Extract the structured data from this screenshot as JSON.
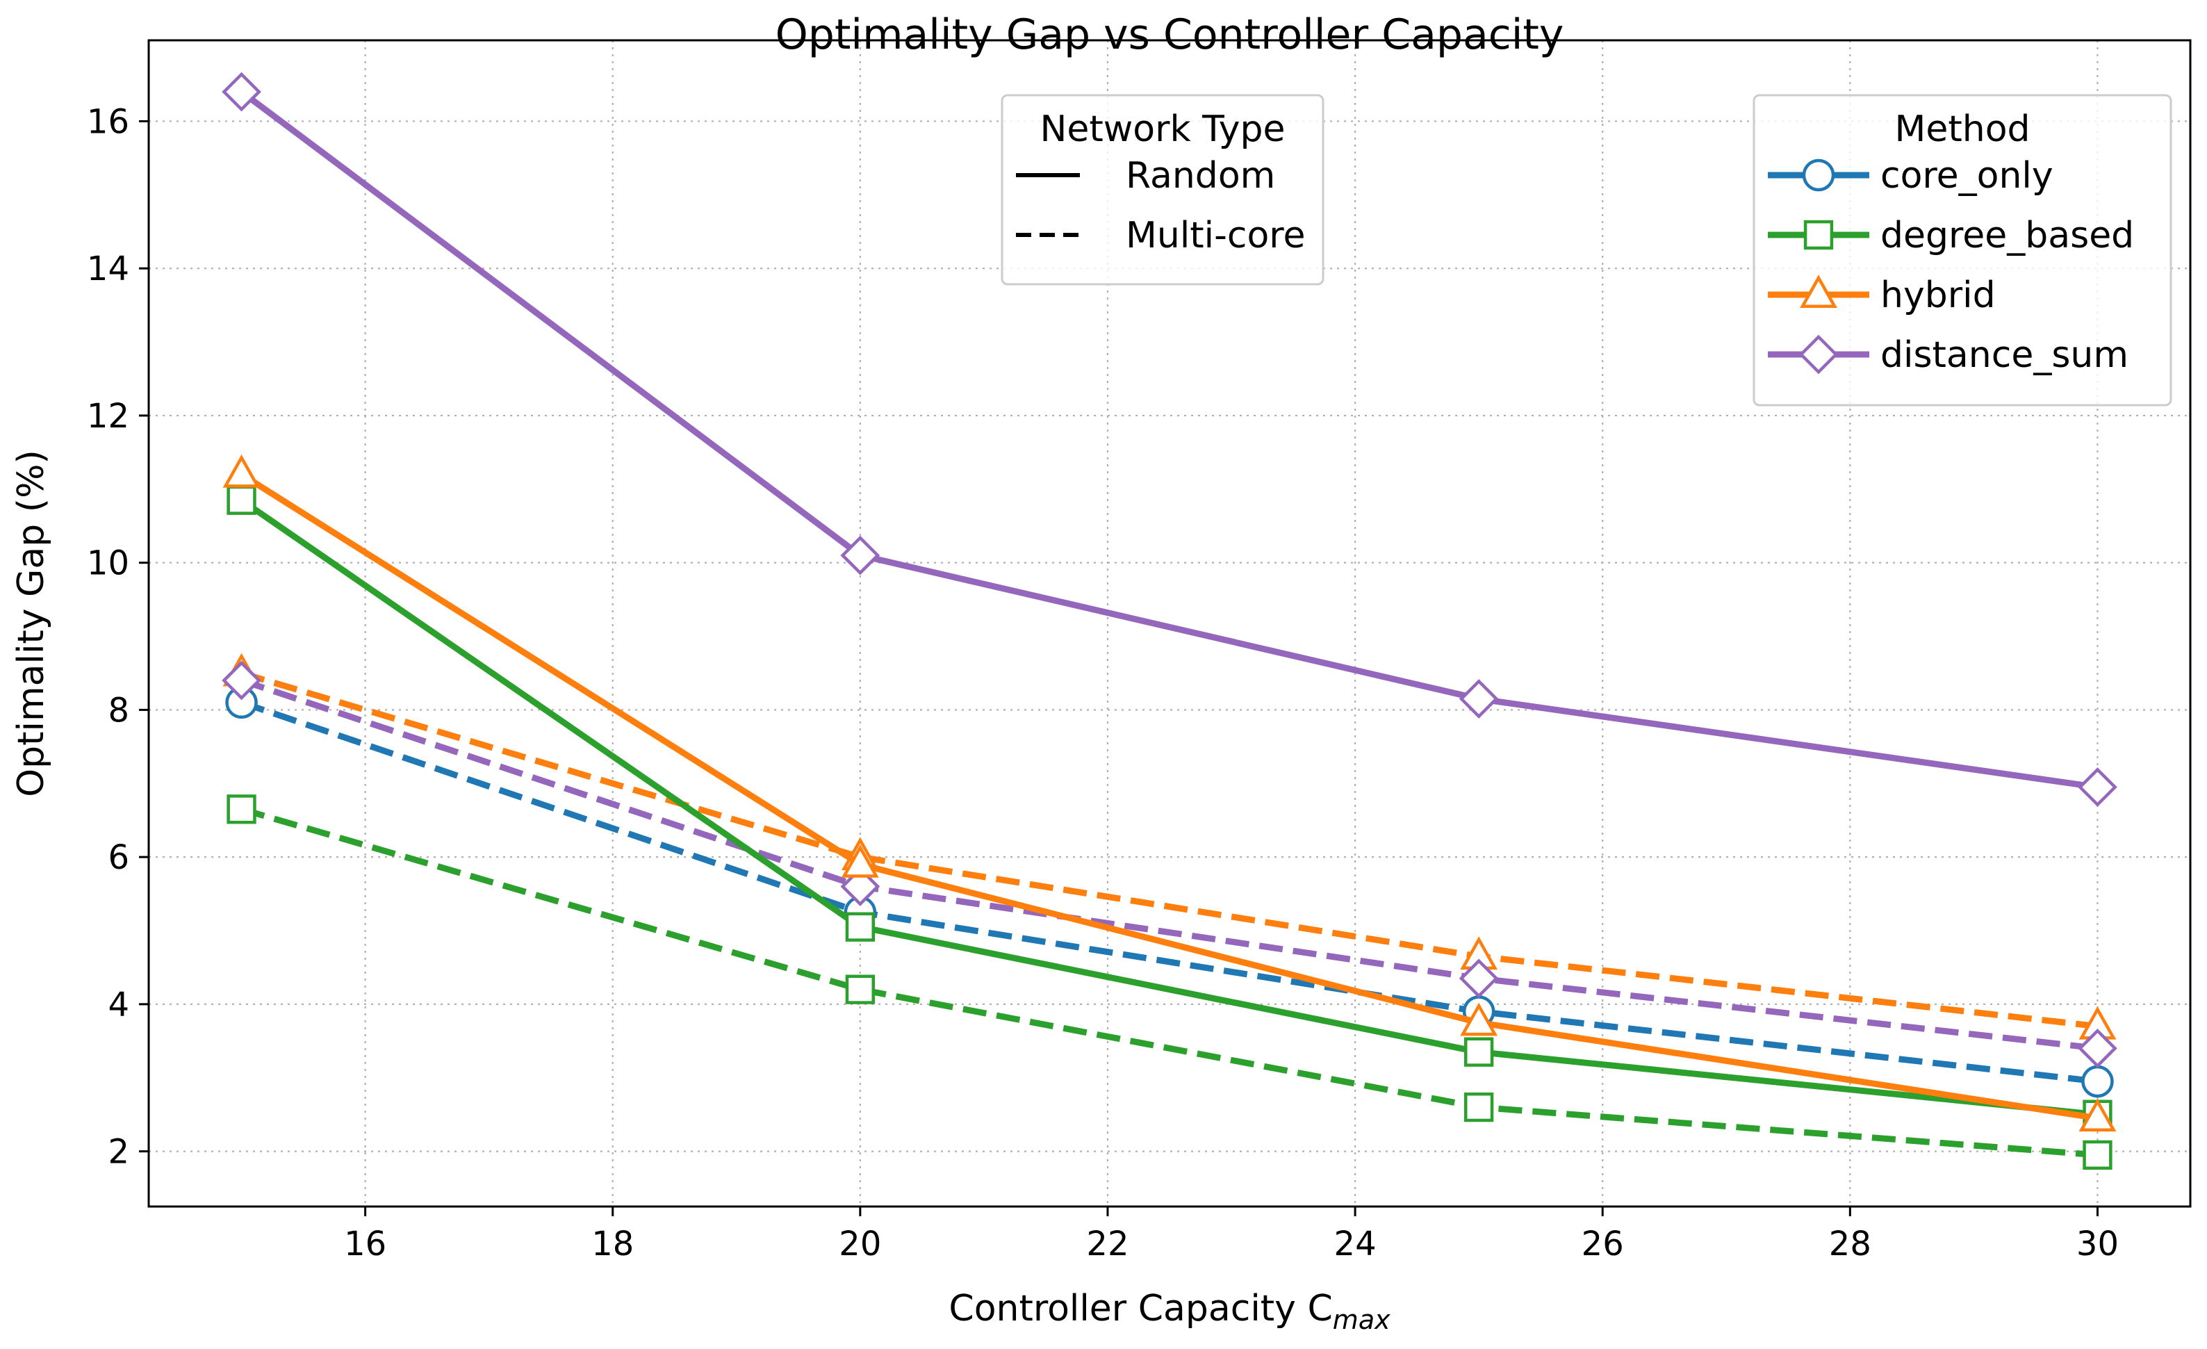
{
  "chart_data": {
    "type": "line",
    "title": "Optimality Gap vs Controller Capacity",
    "xlabel": {
      "main": "Controller Capacity C",
      "subscript": "max"
    },
    "ylabel": "Optimality Gap (%)",
    "xlim": [
      14.25,
      30.75
    ],
    "ylim": [
      1.25,
      17.1
    ],
    "xticks": [
      16,
      18,
      20,
      22,
      24,
      26,
      28,
      30
    ],
    "yticks": [
      2,
      4,
      6,
      8,
      10,
      12,
      14,
      16
    ],
    "grid": true,
    "x": [
      15,
      20,
      25,
      30
    ],
    "legends": {
      "network": {
        "title": "Network Type",
        "placement": "top-center",
        "entries": [
          {
            "label": "Random",
            "style": "solid"
          },
          {
            "label": "Multi-core",
            "style": "dashed"
          }
        ]
      },
      "method": {
        "title": "Method",
        "placement": "top-right",
        "entries": [
          {
            "label": "core_only",
            "color": "#1f77b4",
            "marker": "circle"
          },
          {
            "label": "degree_based",
            "color": "#2ca02c",
            "marker": "square"
          },
          {
            "label": "hybrid",
            "color": "#ff7f0e",
            "marker": "triangle"
          },
          {
            "label": "distance_sum",
            "color": "#9467bd",
            "marker": "diamond"
          }
        ]
      }
    },
    "series": [
      {
        "method": "core_only",
        "network": "Multi-core",
        "style": "dashed",
        "color": "#1f77b4",
        "marker": "circle",
        "values": [
          8.1,
          5.25,
          3.9,
          2.95
        ]
      },
      {
        "method": "degree_based",
        "network": "Multi-core",
        "style": "dashed",
        "color": "#2ca02c",
        "marker": "square",
        "values": [
          6.65,
          4.2,
          2.6,
          1.95
        ]
      },
      {
        "method": "hybrid",
        "network": "Multi-core",
        "style": "dashed",
        "color": "#ff7f0e",
        "marker": "triangle",
        "values": [
          8.5,
          6.0,
          4.65,
          3.7
        ]
      },
      {
        "method": "distance_sum",
        "network": "Multi-core",
        "style": "dashed",
        "color": "#9467bd",
        "marker": "diamond",
        "values": [
          8.4,
          5.6,
          4.35,
          3.4
        ]
      },
      {
        "method": "degree_based",
        "network": "Random",
        "style": "solid",
        "color": "#2ca02c",
        "marker": "square",
        "values": [
          10.85,
          5.05,
          3.35,
          2.5
        ]
      },
      {
        "method": "hybrid",
        "network": "Random",
        "style": "solid",
        "color": "#ff7f0e",
        "marker": "triangle",
        "values": [
          11.2,
          5.9,
          3.75,
          2.45
        ]
      },
      {
        "method": "distance_sum",
        "network": "Random",
        "style": "solid",
        "color": "#9467bd",
        "marker": "diamond",
        "values": [
          16.4,
          10.1,
          8.15,
          6.95
        ]
      }
    ]
  }
}
